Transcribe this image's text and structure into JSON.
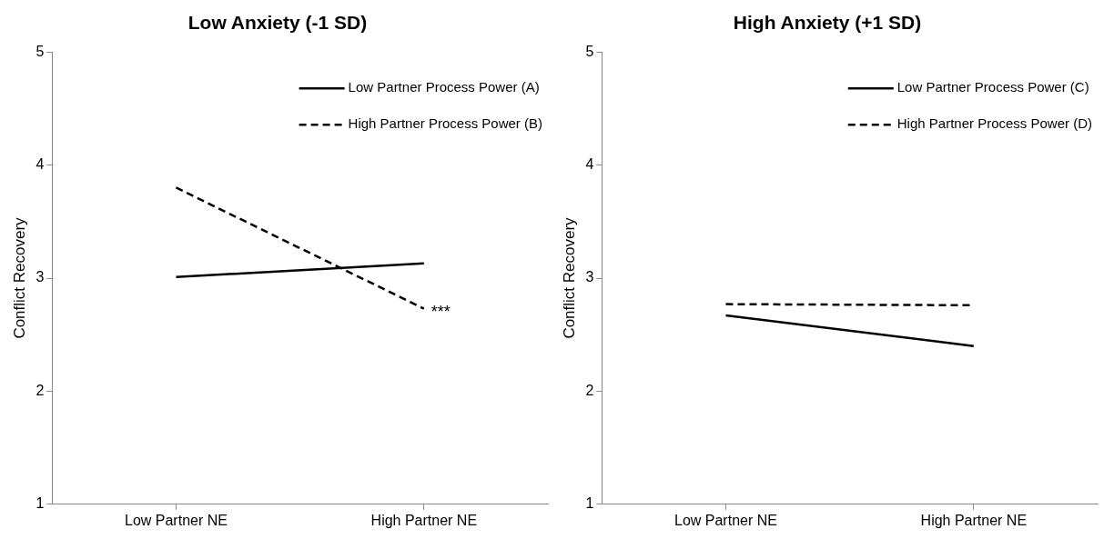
{
  "chart_data": [
    {
      "type": "line",
      "title": "Low Anxiety (-1 SD)",
      "ylabel": "Conflict Recovery",
      "categories": [
        "Low Partner NE",
        "High Partner NE"
      ],
      "ylim": [
        1,
        5
      ],
      "yticks": [
        1,
        2,
        3,
        4,
        5
      ],
      "grid": false,
      "legend": "top right",
      "marker": "none",
      "series": [
        {
          "name": "Low Partner Process Power (A)",
          "color": "#000000",
          "line_style": "solid",
          "values": [
            3.01,
            3.13
          ]
        },
        {
          "name": "High Partner Process Power (B)",
          "color": "#000000",
          "line_style": "dashed",
          "values": [
            3.8,
            2.73
          ]
        }
      ],
      "annotations": [
        {
          "text": "***",
          "x": "High Partner NE",
          "y": 2.73
        }
      ]
    },
    {
      "type": "line",
      "title": "High Anxiety (+1 SD)",
      "ylabel": "Conflict Recovery",
      "categories": [
        "Low Partner NE",
        "High Partner NE"
      ],
      "ylim": [
        1,
        5
      ],
      "yticks": [
        1,
        2,
        3,
        4,
        5
      ],
      "grid": false,
      "legend": "top right",
      "marker": "none",
      "series": [
        {
          "name": "Low Partner Process Power (C)",
          "color": "#000000",
          "line_style": "solid",
          "values": [
            2.67,
            2.4
          ]
        },
        {
          "name": "High Partner Process Power (D)",
          "color": "#000000",
          "line_style": "dashed",
          "values": [
            2.77,
            2.76
          ]
        }
      ]
    }
  ]
}
